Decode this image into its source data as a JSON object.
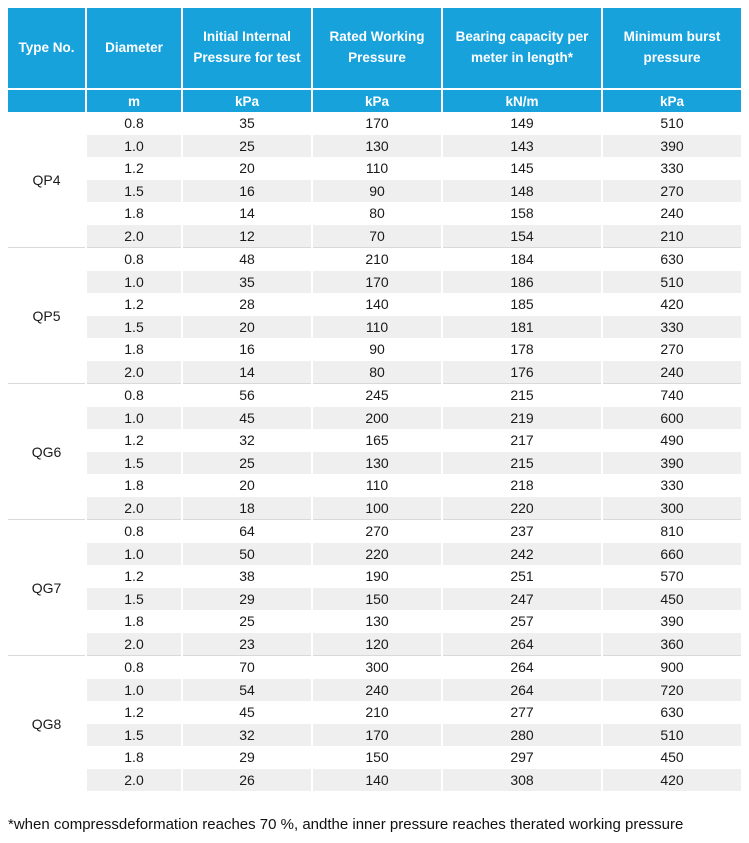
{
  "chart_data": {
    "type": "table",
    "columns": [
      {
        "label": "Type No.",
        "unit": ""
      },
      {
        "label": "Diameter",
        "unit": "m"
      },
      {
        "label": "Initial Internal Pressure for test",
        "unit": "kPa"
      },
      {
        "label": "Rated Working Pressure",
        "unit": "kPa"
      },
      {
        "label": "Bearing capacity per meter in length*",
        "unit": "kN/m"
      },
      {
        "label": "Minimum burst pressure",
        "unit": "kPa"
      }
    ],
    "groups": [
      {
        "type_no": "QP4",
        "rows": [
          [
            "0.8",
            "35",
            "170",
            "149",
            "510"
          ],
          [
            "1.0",
            "25",
            "130",
            "143",
            "390"
          ],
          [
            "1.2",
            "20",
            "110",
            "145",
            "330"
          ],
          [
            "1.5",
            "16",
            "90",
            "148",
            "270"
          ],
          [
            "1.8",
            "14",
            "80",
            "158",
            "240"
          ],
          [
            "2.0",
            "12",
            "70",
            "154",
            "210"
          ]
        ]
      },
      {
        "type_no": "QP5",
        "rows": [
          [
            "0.8",
            "48",
            "210",
            "184",
            "630"
          ],
          [
            "1.0",
            "35",
            "170",
            "186",
            "510"
          ],
          [
            "1.2",
            "28",
            "140",
            "185",
            "420"
          ],
          [
            "1.5",
            "20",
            "110",
            "181",
            "330"
          ],
          [
            "1.8",
            "16",
            "90",
            "178",
            "270"
          ],
          [
            "2.0",
            "14",
            "80",
            "176",
            "240"
          ]
        ]
      },
      {
        "type_no": "QG6",
        "rows": [
          [
            "0.8",
            "56",
            "245",
            "215",
            "740"
          ],
          [
            "1.0",
            "45",
            "200",
            "219",
            "600"
          ],
          [
            "1.2",
            "32",
            "165",
            "217",
            "490"
          ],
          [
            "1.5",
            "25",
            "130",
            "215",
            "390"
          ],
          [
            "1.8",
            "20",
            "110",
            "218",
            "330"
          ],
          [
            "2.0",
            "18",
            "100",
            "220",
            "300"
          ]
        ]
      },
      {
        "type_no": "QG7",
        "rows": [
          [
            "0.8",
            "64",
            "270",
            "237",
            "810"
          ],
          [
            "1.0",
            "50",
            "220",
            "242",
            "660"
          ],
          [
            "1.2",
            "38",
            "190",
            "251",
            "570"
          ],
          [
            "1.5",
            "29",
            "150",
            "247",
            "450"
          ],
          [
            "1.8",
            "25",
            "130",
            "257",
            "390"
          ],
          [
            "2.0",
            "23",
            "120",
            "264",
            "360"
          ]
        ]
      },
      {
        "type_no": "QG8",
        "rows": [
          [
            "0.8",
            "70",
            "300",
            "264",
            "900"
          ],
          [
            "1.0",
            "54",
            "240",
            "264",
            "720"
          ],
          [
            "1.2",
            "45",
            "210",
            "277",
            "630"
          ],
          [
            "1.5",
            "32",
            "170",
            "280",
            "510"
          ],
          [
            "1.8",
            "29",
            "150",
            "297",
            "450"
          ],
          [
            "2.0",
            "26",
            "140",
            "308",
            "420"
          ]
        ]
      }
    ],
    "footnote": "*when compressdeformation reaches 70 %, andthe inner pressure reaches therated working pressure"
  },
  "colors": {
    "header_bg": "#17a2dc",
    "header_text": "#ffffff",
    "stripe_bg": "#efefef",
    "body_text": "#1a1a1a",
    "group_divider": "#d9d9d9"
  }
}
